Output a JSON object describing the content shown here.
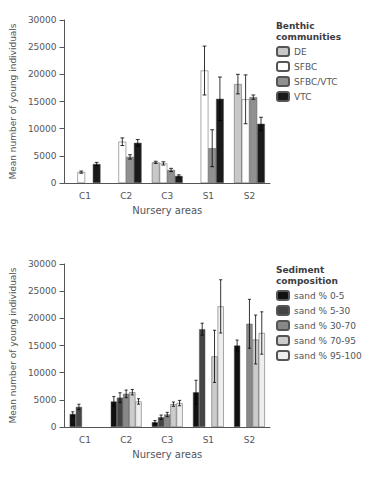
{
  "chart_data": [
    {
      "type": "bar",
      "categories": [
        "C1",
        "C2",
        "C3",
        "S1",
        "S2"
      ],
      "xlabel": "Nursery areas",
      "ylabel": "Mean number of young individuals",
      "ylim": [
        0,
        30000
      ],
      "yticks": [
        0,
        5000,
        10000,
        15000,
        20000,
        25000,
        30000
      ],
      "grid": false,
      "legend": "right",
      "legend_title": "Benthic\ncommunities",
      "series": [
        {
          "name": "DE",
          "color": "#c8c8c8",
          "values": [
            null,
            null,
            3800,
            null,
            18200
          ],
          "errors": [
            0,
            0,
            200,
            0,
            1800
          ]
        },
        {
          "name": "SFBC",
          "color": "#ffffff",
          "values": [
            2000,
            7600,
            3600,
            20700,
            15400
          ],
          "errors": [
            200,
            700,
            300,
            4500,
            4500
          ]
        },
        {
          "name": "SFBC/VTC",
          "color": "#909090",
          "values": [
            null,
            4800,
            2400,
            6400,
            15800
          ],
          "errors": [
            0,
            400,
            300,
            3400,
            400
          ]
        },
        {
          "name": "VTC",
          "color": "#1a1a1a",
          "values": [
            3500,
            7400,
            1300,
            15500,
            10900
          ],
          "errors": [
            300,
            600,
            200,
            4000,
            1200
          ]
        }
      ]
    },
    {
      "type": "bar",
      "categories": [
        "C1",
        "C2",
        "C3",
        "S1",
        "S2"
      ],
      "xlabel": "Nursery areas",
      "ylabel": "Mean number of young individuals",
      "ylim": [
        0,
        30000
      ],
      "yticks": [
        0,
        5000,
        10000,
        15000,
        20000,
        25000,
        30000
      ],
      "grid": false,
      "legend": "right",
      "legend_title": "Sediment\ncomposition",
      "series": [
        {
          "name": "sand % 0-5",
          "color": "#111111",
          "values": [
            2400,
            4700,
            900,
            6400,
            15000
          ],
          "errors": [
            400,
            900,
            300,
            2200,
            1000
          ]
        },
        {
          "name": "sand % 5-30",
          "color": "#444444",
          "values": [
            3700,
            5400,
            1800,
            18000,
            null
          ],
          "errors": [
            500,
            900,
            400,
            1100,
            0
          ]
        },
        {
          "name": "sand % 30-70",
          "color": "#888888",
          "values": [
            null,
            6100,
            2300,
            null,
            19000
          ],
          "errors": [
            0,
            700,
            400,
            0,
            4500
          ]
        },
        {
          "name": "sand % 70-95",
          "color": "#cccccc",
          "values": [
            null,
            6400,
            4200,
            13000,
            16100
          ],
          "errors": [
            0,
            500,
            400,
            4800,
            4500
          ]
        },
        {
          "name": "sand % 95-100",
          "color": "#eeeeee",
          "values": [
            null,
            4700,
            4400,
            22200,
            17300
          ],
          "errors": [
            0,
            500,
            500,
            4900,
            3900
          ]
        }
      ]
    }
  ]
}
